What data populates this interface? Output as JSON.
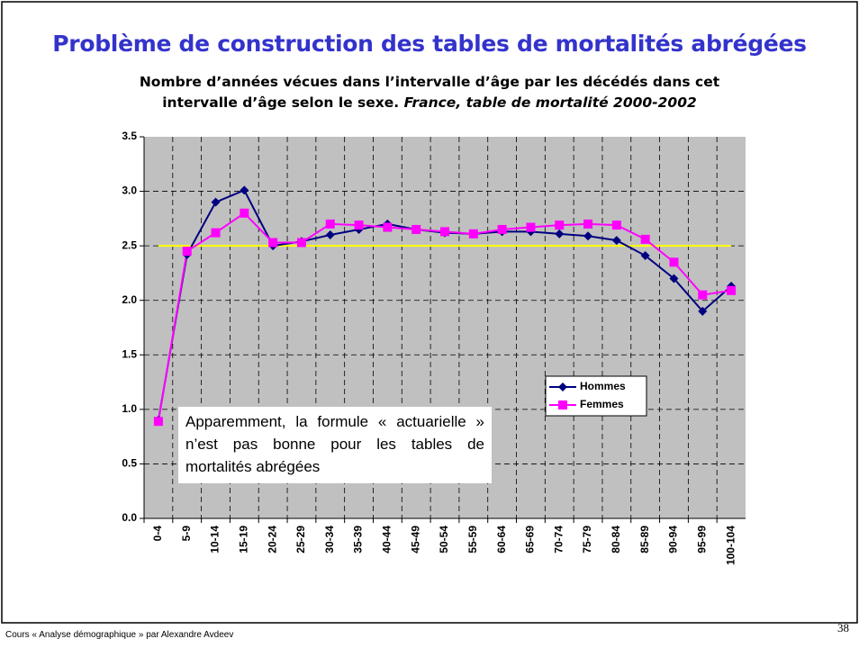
{
  "chart_data": {
    "type": "line",
    "title": "Problème de construction des tables de mortalités abrégées",
    "subtitle": "Nombre d’années vécues dans l’intervalle d’âge par les décédés dans cet intervalle d’âge selon le sexe.",
    "subtitle_note": "France, table de mortalité 2000-2002",
    "categories": [
      "0-4",
      "5-9",
      "10-14",
      "15-19",
      "20-24",
      "25-29",
      "30-34",
      "35-39",
      "40-44",
      "45-49",
      "50-54",
      "55-59",
      "60-64",
      "65-69",
      "70-74",
      "75-79",
      "80-84",
      "85-89",
      "90-94",
      "95-99",
      "100-104"
    ],
    "series": [
      {
        "name": "Hommes",
        "color": "#000080",
        "marker": "diamond",
        "values": [
          0.9,
          2.42,
          2.9,
          3.01,
          2.5,
          2.54,
          2.6,
          2.65,
          2.7,
          2.65,
          2.62,
          2.61,
          2.63,
          2.63,
          2.61,
          2.59,
          2.55,
          2.41,
          2.2,
          1.9,
          2.13
        ]
      },
      {
        "name": "Femmes",
        "color": "#ff00ff",
        "marker": "square",
        "values": [
          0.89,
          2.45,
          2.62,
          2.8,
          2.53,
          2.53,
          2.7,
          2.69,
          2.67,
          2.65,
          2.63,
          2.61,
          2.65,
          2.67,
          2.69,
          2.7,
          2.69,
          2.56,
          2.35,
          2.05,
          2.09
        ]
      }
    ],
    "reference_line": {
      "value": 2.5,
      "color": "#ffff00"
    },
    "ylim": [
      0,
      3.5
    ],
    "yticks": [
      {
        "value": 0,
        "label": "0.0"
      },
      0.5,
      {
        "value": 1,
        "label": "1.0"
      },
      1.5,
      {
        "value": 2,
        "label": "2.0"
      },
      2.5,
      {
        "value": 3,
        "label": "3.0"
      },
      3.5
    ],
    "grid": true,
    "legend": "right",
    "annotation": "Apparemment, la formule « actuarielle » n’est pas bonne pour les tables de mortalités abrégées",
    "footer": "Cours « Analyse démographique » par Alexandre Avdeev",
    "page_number": "38"
  }
}
